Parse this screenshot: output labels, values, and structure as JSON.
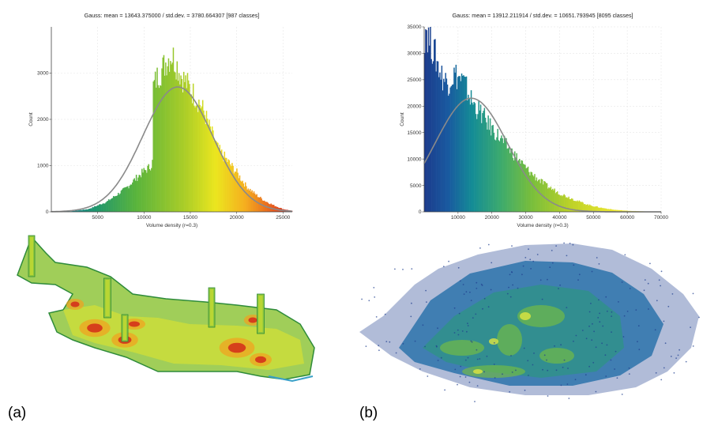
{
  "figure": {
    "panel_labels": [
      "(a)",
      "(b)"
    ]
  },
  "chart_data": [
    {
      "type": "bar",
      "title": "Gauss: mean = 13643.375000 / std.dev. = 3780.664307 [987 classes]",
      "xlabel": "Volume density (r=0.3)",
      "ylabel": "Count",
      "xlim": [
        0,
        26000
      ],
      "ylim": [
        0,
        4000
      ],
      "xticks": [
        5000,
        10000,
        15000,
        20000,
        25000
      ],
      "yticks": [
        0,
        1000,
        2000,
        3000
      ],
      "gauss": {
        "mean": 13643.375,
        "std": 3780.664307,
        "peak": 2700
      },
      "colormap": "green-yellow-red",
      "profile": {
        "x": [
          0,
          2000,
          4000,
          6000,
          8000,
          9000,
          10000,
          10500,
          10900,
          11000,
          11500,
          12000,
          12500,
          13000,
          13500,
          14000,
          14500,
          15000,
          15500,
          16000,
          16500,
          17000,
          17500,
          18000,
          19000,
          20000,
          21000,
          22000,
          23000,
          24000,
          25000,
          26000
        ],
        "y": [
          0,
          10,
          60,
          220,
          500,
          700,
          880,
          950,
          1050,
          2700,
          2950,
          3100,
          3300,
          3400,
          3200,
          2950,
          2800,
          2650,
          2500,
          2350,
          2150,
          1850,
          1600,
          1350,
          1100,
          850,
          560,
          380,
          240,
          140,
          60,
          20
        ]
      }
    },
    {
      "type": "bar",
      "title": "Gauss: mean = 13912.211914 / std.dev. = 10651.793945 [8095 classes]",
      "xlabel": "Volume density (r=0.3)",
      "ylabel": "Count",
      "xlim": [
        0,
        70000
      ],
      "ylim": [
        0,
        35000
      ],
      "xticks": [
        10000,
        20000,
        30000,
        40000,
        50000,
        60000,
        70000
      ],
      "yticks": [
        0,
        5000,
        10000,
        15000,
        20000,
        25000,
        30000,
        35000
      ],
      "gauss": {
        "mean": 13912.211914,
        "std": 10651.793945,
        "peak": 21500
      },
      "colormap": "blue-green-yellow",
      "profile": {
        "x": [
          0,
          500,
          1000,
          2000,
          3000,
          4000,
          5000,
          6000,
          7000,
          8000,
          9000,
          10000,
          11000,
          12000,
          13000,
          14000,
          15000,
          17000,
          19000,
          21000,
          23000,
          25000,
          27000,
          30000,
          33000,
          36000,
          40000,
          44000,
          48000,
          52000,
          56000,
          60000,
          65000,
          70000
        ],
        "y": [
          33000,
          35500,
          33500,
          32000,
          30000,
          28000,
          26000,
          25000,
          24500,
          25500,
          26000,
          25500,
          25000,
          24000,
          22500,
          21000,
          20000,
          18500,
          16500,
          15000,
          13500,
          12000,
          10500,
          8300,
          6500,
          5000,
          3500,
          2400,
          1400,
          800,
          400,
          200,
          80,
          20
        ]
      }
    }
  ],
  "scenes": {
    "a": {
      "name": "terrain-point-cloud-green-red",
      "colors": [
        "#2e8b3a",
        "#8fc63c",
        "#e3e52a",
        "#f2a11e",
        "#d32a1a",
        "#3aa0c8"
      ]
    },
    "b": {
      "name": "dense-point-cloud-blue-green",
      "colors": [
        "#1f3f8f",
        "#1b6aa5",
        "#2a9a7a",
        "#7cc23b",
        "#dfe640"
      ]
    }
  }
}
